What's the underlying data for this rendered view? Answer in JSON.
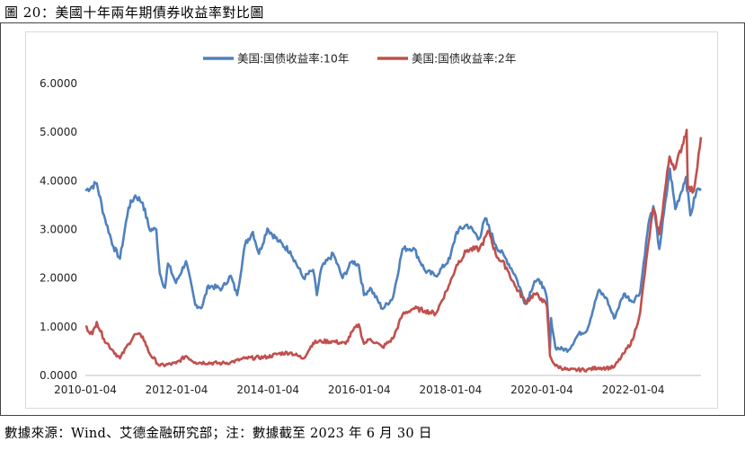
{
  "figure_caption": "圖 20：美國十年兩年期債券收益率對比圖",
  "source_note": "數據來源：Wind、艾德金融研究部；注：數據截至 2023 年 6 月 30 日",
  "colors": {
    "series_10y": "#4f81bd",
    "series_2y": "#c0504d",
    "grid": "#d9d9d9"
  },
  "chart_data": {
    "type": "line",
    "title": "",
    "xlabel": "",
    "ylabel": "",
    "ylim": [
      0,
      6
    ],
    "yticks": [
      "0.0000",
      "1.0000",
      "2.0000",
      "3.0000",
      "4.0000",
      "5.0000",
      "6.0000"
    ],
    "xticks": [
      "2010-01-04",
      "2012-01-04",
      "2014-01-04",
      "2016-01-04",
      "2018-01-04",
      "2020-01-04",
      "2022-01-04"
    ],
    "xrange": [
      "2010-01-04",
      "2023-06-30"
    ],
    "grid": false,
    "legend_position": "top-center",
    "series": [
      {
        "name": "美国:国债收益率:10年",
        "color": "#4f81bd",
        "points": [
          [
            "2010-01-04",
            3.8
          ],
          [
            "2010-04-05",
            3.95
          ],
          [
            "2010-06-01",
            3.3
          ],
          [
            "2010-08-16",
            2.65
          ],
          [
            "2010-10-08",
            2.4
          ],
          [
            "2010-12-15",
            3.45
          ],
          [
            "2011-02-08",
            3.7
          ],
          [
            "2011-04-08",
            3.55
          ],
          [
            "2011-06-01",
            3.0
          ],
          [
            "2011-07-25",
            3.0
          ],
          [
            "2011-08-22",
            2.1
          ],
          [
            "2011-10-03",
            1.8
          ],
          [
            "2011-10-27",
            2.3
          ],
          [
            "2011-12-30",
            1.9
          ],
          [
            "2012-03-19",
            2.35
          ],
          [
            "2012-06-01",
            1.45
          ],
          [
            "2012-07-24",
            1.4
          ],
          [
            "2012-09-14",
            1.85
          ],
          [
            "2012-12-31",
            1.78
          ],
          [
            "2013-03-11",
            2.05
          ],
          [
            "2013-05-02",
            1.65
          ],
          [
            "2013-07-05",
            2.7
          ],
          [
            "2013-09-05",
            2.95
          ],
          [
            "2013-10-24",
            2.5
          ],
          [
            "2013-12-31",
            3.02
          ],
          [
            "2014-04-01",
            2.75
          ],
          [
            "2014-07-01",
            2.55
          ],
          [
            "2014-10-15",
            2.0
          ],
          [
            "2014-12-31",
            2.17
          ],
          [
            "2015-01-30",
            1.65
          ],
          [
            "2015-03-06",
            2.2
          ],
          [
            "2015-06-10",
            2.5
          ],
          [
            "2015-08-24",
            2.0
          ],
          [
            "2015-11-09",
            2.35
          ],
          [
            "2015-12-31",
            2.27
          ],
          [
            "2016-02-11",
            1.65
          ],
          [
            "2016-04-01",
            1.8
          ],
          [
            "2016-07-08",
            1.37
          ],
          [
            "2016-09-30",
            1.6
          ],
          [
            "2016-12-15",
            2.6
          ],
          [
            "2017-03-13",
            2.62
          ],
          [
            "2017-06-14",
            2.15
          ],
          [
            "2017-09-07",
            2.05
          ],
          [
            "2017-12-29",
            2.4
          ],
          [
            "2018-02-21",
            2.95
          ],
          [
            "2018-05-17",
            3.1
          ],
          [
            "2018-08-23",
            2.82
          ],
          [
            "2018-10-08",
            3.23
          ],
          [
            "2018-12-31",
            2.68
          ],
          [
            "2019-03-27",
            2.38
          ],
          [
            "2019-06-03",
            2.07
          ],
          [
            "2019-08-28",
            1.47
          ],
          [
            "2019-11-07",
            1.94
          ],
          [
            "2019-12-31",
            1.92
          ],
          [
            "2020-02-14",
            1.58
          ],
          [
            "2020-03-09",
            0.54
          ],
          [
            "2020-03-18",
            1.18
          ],
          [
            "2020-04-21",
            0.57
          ],
          [
            "2020-08-04",
            0.52
          ],
          [
            "2020-10-23",
            0.85
          ],
          [
            "2020-12-31",
            0.93
          ],
          [
            "2021-03-31",
            1.74
          ],
          [
            "2021-06-01",
            1.6
          ],
          [
            "2021-08-04",
            1.17
          ],
          [
            "2021-10-21",
            1.68
          ],
          [
            "2021-12-31",
            1.52
          ],
          [
            "2022-03-01",
            1.72
          ],
          [
            "2022-05-06",
            3.12
          ],
          [
            "2022-06-14",
            3.48
          ],
          [
            "2022-08-01",
            2.6
          ],
          [
            "2022-10-24",
            4.25
          ],
          [
            "2022-12-07",
            3.42
          ],
          [
            "2023-03-02",
            4.08
          ],
          [
            "2023-04-06",
            3.29
          ],
          [
            "2023-05-26",
            3.8
          ],
          [
            "2023-06-30",
            3.84
          ]
        ]
      },
      {
        "name": "美国:国债收益率:2年",
        "color": "#c0504d",
        "points": [
          [
            "2010-01-04",
            1.0
          ],
          [
            "2010-03-01",
            0.85
          ],
          [
            "2010-04-05",
            1.1
          ],
          [
            "2010-06-01",
            0.75
          ],
          [
            "2010-08-16",
            0.5
          ],
          [
            "2010-10-08",
            0.35
          ],
          [
            "2010-12-15",
            0.65
          ],
          [
            "2011-02-08",
            0.85
          ],
          [
            "2011-04-08",
            0.8
          ],
          [
            "2011-06-01",
            0.45
          ],
          [
            "2011-08-22",
            0.2
          ],
          [
            "2011-12-30",
            0.25
          ],
          [
            "2012-03-19",
            0.4
          ],
          [
            "2012-06-01",
            0.27
          ],
          [
            "2012-12-31",
            0.25
          ],
          [
            "2013-03-11",
            0.27
          ],
          [
            "2013-07-05",
            0.35
          ],
          [
            "2013-12-31",
            0.38
          ],
          [
            "2014-04-01",
            0.45
          ],
          [
            "2014-07-01",
            0.47
          ],
          [
            "2014-10-15",
            0.35
          ],
          [
            "2014-12-31",
            0.67
          ],
          [
            "2015-03-06",
            0.7
          ],
          [
            "2015-06-10",
            0.7
          ],
          [
            "2015-09-17",
            0.65
          ],
          [
            "2015-11-09",
            0.9
          ],
          [
            "2015-12-31",
            1.05
          ],
          [
            "2016-02-11",
            0.65
          ],
          [
            "2016-04-01",
            0.75
          ],
          [
            "2016-07-08",
            0.58
          ],
          [
            "2016-09-30",
            0.76
          ],
          [
            "2016-12-15",
            1.25
          ],
          [
            "2017-03-13",
            1.38
          ],
          [
            "2017-06-14",
            1.33
          ],
          [
            "2017-09-07",
            1.27
          ],
          [
            "2017-12-29",
            1.89
          ],
          [
            "2018-02-21",
            2.27
          ],
          [
            "2018-05-17",
            2.58
          ],
          [
            "2018-08-23",
            2.6
          ],
          [
            "2018-11-08",
            2.97
          ],
          [
            "2018-12-31",
            2.49
          ],
          [
            "2019-03-27",
            2.22
          ],
          [
            "2019-06-03",
            1.84
          ],
          [
            "2019-08-28",
            1.5
          ],
          [
            "2019-11-07",
            1.68
          ],
          [
            "2019-12-31",
            1.58
          ],
          [
            "2020-02-14",
            1.42
          ],
          [
            "2020-03-09",
            0.4
          ],
          [
            "2020-04-21",
            0.2
          ],
          [
            "2020-08-04",
            0.11
          ],
          [
            "2020-12-31",
            0.12
          ],
          [
            "2021-03-31",
            0.16
          ],
          [
            "2021-06-01",
            0.15
          ],
          [
            "2021-08-04",
            0.17
          ],
          [
            "2021-10-21",
            0.45
          ],
          [
            "2021-12-31",
            0.73
          ],
          [
            "2022-03-01",
            1.3
          ],
          [
            "2022-05-06",
            2.72
          ],
          [
            "2022-06-14",
            3.43
          ],
          [
            "2022-08-01",
            2.9
          ],
          [
            "2022-10-21",
            4.5
          ],
          [
            "2022-12-07",
            4.26
          ],
          [
            "2023-03-08",
            5.05
          ],
          [
            "2023-03-17",
            3.84
          ],
          [
            "2023-05-04",
            3.8
          ],
          [
            "2023-06-30",
            4.9
          ]
        ]
      }
    ]
  }
}
